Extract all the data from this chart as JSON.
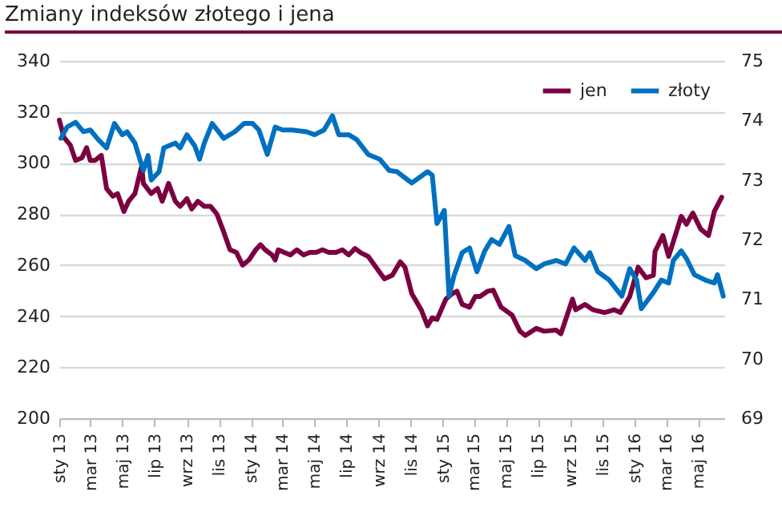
{
  "chart_data": {
    "type": "line",
    "title": "Zmiany indeksów złotego i jena",
    "grid": "y",
    "legend": "top right",
    "xlim": [
      "2013-01-01",
      "2016-06-20"
    ],
    "xticks": [
      {
        "value": "2013-01-01",
        "label": "sty 13"
      },
      {
        "value": "2013-03-01",
        "label": "mar 13"
      },
      {
        "value": "2013-05-01",
        "label": "maj 13"
      },
      {
        "value": "2013-07-01",
        "label": "lip 13"
      },
      {
        "value": "2013-09-01",
        "label": "wrz 13"
      },
      {
        "value": "2013-11-01",
        "label": "lis 13"
      },
      {
        "value": "2014-01-01",
        "label": "sty 14"
      },
      {
        "value": "2014-03-01",
        "label": "mar 14"
      },
      {
        "value": "2014-05-01",
        "label": "maj 14"
      },
      {
        "value": "2014-07-01",
        "label": "lip 14"
      },
      {
        "value": "2014-09-01",
        "label": "wrz 14"
      },
      {
        "value": "2014-11-01",
        "label": "lis 14"
      },
      {
        "value": "2015-01-01",
        "label": "sty 15"
      },
      {
        "value": "2015-03-01",
        "label": "mar 15"
      },
      {
        "value": "2015-05-01",
        "label": "maj 15"
      },
      {
        "value": "2015-07-01",
        "label": "lip 15"
      },
      {
        "value": "2015-09-01",
        "label": "wrz 15"
      },
      {
        "value": "2015-11-01",
        "label": "lis 15"
      },
      {
        "value": "2016-01-01",
        "label": "sty 16"
      },
      {
        "value": "2016-03-01",
        "label": "mar 16"
      },
      {
        "value": "2016-05-01",
        "label": "maj 16"
      }
    ],
    "ylim": [
      200,
      340
    ],
    "yticks": [
      200,
      220,
      240,
      260,
      280,
      300,
      320,
      340
    ],
    "y2lim": [
      69,
      75
    ],
    "y2ticks": [
      69,
      70,
      71,
      72,
      73,
      74,
      75
    ],
    "series": [
      {
        "name": "jen",
        "color": "#7b0041",
        "x": [
          "2013-01-01",
          "2013-01-10",
          "2013-01-22",
          "2013-02-01",
          "2013-02-13",
          "2013-02-22",
          "2013-03-01",
          "2013-03-10",
          "2013-03-22",
          "2013-04-01",
          "2013-04-13",
          "2013-04-22",
          "2013-05-04",
          "2013-05-13",
          "2013-05-25",
          "2013-06-07",
          "2013-06-10",
          "2013-06-25",
          "2013-07-07",
          "2013-07-16",
          "2013-07-28",
          "2013-08-10",
          "2013-08-19",
          "2013-09-01",
          "2013-09-10",
          "2013-09-22",
          "2013-10-04",
          "2013-10-16",
          "2013-10-28",
          "2013-11-10",
          "2013-11-22",
          "2013-12-04",
          "2013-12-16",
          "2013-12-28",
          "2014-01-10",
          "2014-01-19",
          "2014-01-28",
          "2014-02-10",
          "2014-02-16",
          "2014-02-22",
          "2014-03-05",
          "2014-03-17",
          "2014-03-29",
          "2014-04-11",
          "2014-04-23",
          "2014-05-05",
          "2014-05-17",
          "2014-05-29",
          "2014-06-12",
          "2014-06-24",
          "2014-07-06",
          "2014-07-18",
          "2014-07-30",
          "2014-08-12",
          "2014-09-03",
          "2014-09-12",
          "2014-09-27",
          "2014-10-12",
          "2014-10-21",
          "2014-11-03",
          "2014-11-21",
          "2014-12-03",
          "2014-12-12",
          "2014-12-21",
          "2015-01-07",
          "2015-01-19",
          "2015-01-28",
          "2015-02-07",
          "2015-02-21",
          "2015-03-04",
          "2015-03-13",
          "2015-03-28",
          "2015-04-07",
          "2015-04-22",
          "2015-05-13",
          "2015-05-28",
          "2015-06-07",
          "2015-06-28",
          "2015-07-13",
          "2015-08-05",
          "2015-08-14",
          "2015-09-05",
          "2015-09-11",
          "2015-09-29",
          "2015-10-14",
          "2015-11-05",
          "2015-11-23",
          "2015-12-05",
          "2015-12-23",
          "2016-01-08",
          "2016-01-23",
          "2016-02-06",
          "2016-02-09",
          "2016-02-24",
          "2016-03-06",
          "2016-03-30",
          "2016-04-09",
          "2016-04-21",
          "2016-05-06",
          "2016-05-21",
          "2016-06-01",
          "2016-06-15"
        ],
        "values": [
          316.8,
          310,
          307,
          301,
          302,
          306,
          301,
          301,
          303,
          290,
          287,
          288,
          281,
          285,
          288,
          299,
          292,
          288,
          290,
          285,
          292,
          285,
          283,
          286,
          282,
          285,
          283,
          283,
          280,
          273,
          266,
          265,
          260,
          262,
          266,
          268,
          266,
          264,
          262,
          266,
          265,
          264,
          266,
          264,
          265,
          265,
          266,
          265,
          265,
          266,
          264,
          266.5,
          264.7,
          263.4,
          257.1,
          254.6,
          256,
          261.3,
          259.2,
          248.8,
          242.5,
          236.2,
          239.4,
          238.7,
          246.7,
          248.8,
          249.8,
          244.6,
          243.5,
          247.7,
          247.7,
          249.8,
          250.2,
          243.5,
          240.4,
          234.1,
          232.4,
          235.2,
          234.1,
          234.5,
          233.1,
          246.7,
          242.5,
          244.6,
          242.5,
          241.4,
          242.5,
          241.4,
          247.7,
          259.2,
          255,
          256,
          265.3,
          271.6,
          263.4,
          279.1,
          276,
          280.4,
          274.1,
          271.6,
          281,
          286.6
        ]
      },
      {
        "name": "złoty",
        "color": "#0070c0",
        "axis": "y2",
        "x": [
          "2013-01-04",
          "2013-01-16",
          "2013-02-01",
          "2013-02-16",
          "2013-03-01",
          "2013-03-16",
          "2013-04-01",
          "2013-04-16",
          "2013-05-01",
          "2013-05-10",
          "2013-05-25",
          "2013-06-10",
          "2013-06-19",
          "2013-06-25",
          "2013-07-10",
          "2013-07-19",
          "2013-08-10",
          "2013-08-19",
          "2013-09-01",
          "2013-09-16",
          "2013-09-25",
          "2013-10-04",
          "2013-10-19",
          "2013-11-10",
          "2013-12-01",
          "2013-12-19",
          "2014-01-04",
          "2014-01-16",
          "2014-02-01",
          "2014-02-16",
          "2014-03-02",
          "2014-03-20",
          "2014-04-17",
          "2014-05-02",
          "2014-05-20",
          "2014-06-05",
          "2014-06-17",
          "2014-07-06",
          "2014-07-21",
          "2014-08-12",
          "2014-09-03",
          "2014-09-21",
          "2014-10-06",
          "2014-11-03",
          "2014-12-03",
          "2014-12-12",
          "2014-12-21",
          "2015-01-04",
          "2015-01-13",
          "2015-01-22",
          "2015-02-07",
          "2015-02-21",
          "2015-03-07",
          "2015-03-22",
          "2015-04-04",
          "2015-04-19",
          "2015-05-07",
          "2015-05-19",
          "2015-06-07",
          "2015-06-28",
          "2015-07-13",
          "2015-08-05",
          "2015-08-23",
          "2015-09-08",
          "2015-09-29",
          "2015-10-08",
          "2015-10-23",
          "2015-11-14",
          "2015-12-08",
          "2015-12-23",
          "2016-01-05",
          "2016-01-14",
          "2016-02-06",
          "2016-02-21",
          "2016-03-06",
          "2016-03-15",
          "2016-03-30",
          "2016-04-09",
          "2016-04-24",
          "2016-05-15",
          "2016-06-01",
          "2016-06-07",
          "2016-06-18"
        ],
        "values": [
          73.7,
          73.89,
          73.97,
          73.81,
          73.84,
          73.68,
          73.54,
          73.95,
          73.76,
          73.81,
          73.62,
          73.16,
          73.41,
          73.0,
          73.14,
          73.54,
          73.62,
          73.54,
          73.76,
          73.57,
          73.35,
          73.62,
          73.95,
          73.7,
          73.81,
          73.95,
          73.95,
          73.84,
          73.43,
          73.89,
          73.84,
          73.84,
          73.81,
          73.76,
          73.84,
          74.08,
          73.76,
          73.76,
          73.68,
          73.43,
          73.35,
          73.16,
          73.14,
          72.95,
          73.14,
          73.08,
          72.27,
          72.49,
          71.05,
          71.38,
          71.78,
          71.86,
          71.46,
          71.81,
          72.0,
          71.92,
          72.22,
          71.73,
          71.65,
          71.51,
          71.59,
          71.65,
          71.59,
          71.86,
          71.65,
          71.78,
          71.46,
          71.32,
          71.05,
          71.51,
          71.32,
          70.84,
          71.11,
          71.32,
          71.27,
          71.65,
          71.81,
          71.68,
          71.41,
          71.32,
          71.27,
          71.41,
          71.05
        ]
      }
    ]
  }
}
